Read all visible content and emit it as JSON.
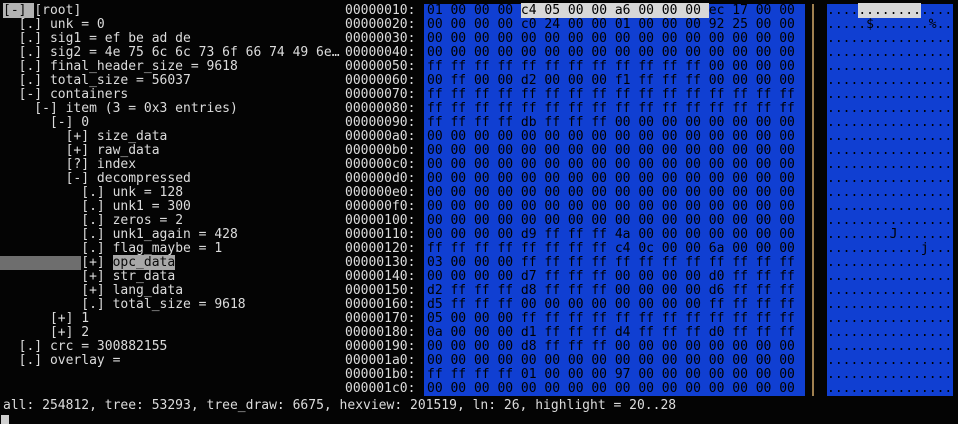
{
  "colors": {
    "panel_blue": "#103fd2",
    "byte_text": "#000000",
    "highlight_bg": "#d8d8d8",
    "selection_bar": "#6e6e6e",
    "selection_label_bg": "#a8a8a8",
    "cursor_bracket_bg": "#b2b2b2",
    "scrollbar": "#a08050",
    "text": "#dcdcdc"
  },
  "tree": {
    "rows": [
      {
        "indent": 0,
        "bracket": "[-]",
        "label": "[root]",
        "cursor_bracket": true,
        "selected": false
      },
      {
        "indent": 1,
        "bracket": "[.]",
        "label": "unk = 0",
        "selected": false
      },
      {
        "indent": 1,
        "bracket": "[.]",
        "label": "sig1 = ef be ad de",
        "selected": false
      },
      {
        "indent": 1,
        "bracket": "[.]",
        "label": "sig2 = 4e 75 6c 6c 73 6f 66 74 49 6e…",
        "selected": false
      },
      {
        "indent": 1,
        "bracket": "[.]",
        "label": "final_header_size = 9618",
        "selected": false
      },
      {
        "indent": 1,
        "bracket": "[.]",
        "label": "total_size = 56037",
        "selected": false
      },
      {
        "indent": 1,
        "bracket": "[-]",
        "label": "containers",
        "selected": false
      },
      {
        "indent": 2,
        "bracket": "[-]",
        "label": "item (3 = 0x3 entries)",
        "selected": false
      },
      {
        "indent": 3,
        "bracket": "[-]",
        "label": "0",
        "selected": false
      },
      {
        "indent": 4,
        "bracket": "[+]",
        "label": "size_data",
        "selected": false
      },
      {
        "indent": 4,
        "bracket": "[+]",
        "label": "raw_data",
        "selected": false
      },
      {
        "indent": 4,
        "bracket": "[?]",
        "label": "index",
        "selected": false
      },
      {
        "indent": 4,
        "bracket": "[-]",
        "label": "decompressed",
        "selected": false
      },
      {
        "indent": 5,
        "bracket": "[.]",
        "label": "unk = 128",
        "selected": false
      },
      {
        "indent": 5,
        "bracket": "[.]",
        "label": "unk1 = 300",
        "selected": false
      },
      {
        "indent": 5,
        "bracket": "[.]",
        "label": "zeros = 2",
        "selected": false
      },
      {
        "indent": 5,
        "bracket": "[.]",
        "label": "unk1_again = 428",
        "selected": false
      },
      {
        "indent": 5,
        "bracket": "[.]",
        "label": "flag_maybe = 1",
        "selected": false
      },
      {
        "indent": 5,
        "bracket": "[+]",
        "label": "opc_data",
        "selected": true
      },
      {
        "indent": 5,
        "bracket": "[+]",
        "label": "str_data",
        "selected": false
      },
      {
        "indent": 5,
        "bracket": "[+]",
        "label": "lang_data",
        "selected": false
      },
      {
        "indent": 5,
        "bracket": "[.]",
        "label": "total_size = 9618",
        "selected": false
      },
      {
        "indent": 3,
        "bracket": "[+]",
        "label": "1",
        "selected": false
      },
      {
        "indent": 3,
        "bracket": "[+]",
        "label": "2",
        "selected": false
      },
      {
        "indent": 1,
        "bracket": "[.]",
        "label": "crc = 300882155",
        "selected": false
      },
      {
        "indent": 1,
        "bracket": "[.]",
        "label": "overlay =",
        "selected": false
      }
    ]
  },
  "hex": {
    "rows": [
      {
        "addr": "00000010:",
        "bytes": "01 00 00 00 c4 05 00 00 a6 00 00 00 ec 17 00 00",
        "highlight": [
          4,
          12
        ]
      },
      {
        "addr": "00000020:",
        "bytes": "00 00 00 00 c0 24 00 00 01 00 00 00 92 25 00 00"
      },
      {
        "addr": "00000030:",
        "bytes": "00 00 00 00 00 00 00 00 00 00 00 00 00 00 00 00"
      },
      {
        "addr": "00000040:",
        "bytes": "00 00 00 00 00 00 00 00 00 00 00 00 00 00 00 00"
      },
      {
        "addr": "00000050:",
        "bytes": "ff ff ff ff ff ff ff ff ff ff ff ff 00 00 00 00"
      },
      {
        "addr": "00000060:",
        "bytes": "00 ff 00 00 d2 00 00 00 f1 ff ff ff 00 00 00 00"
      },
      {
        "addr": "00000070:",
        "bytes": "ff ff ff ff ff ff ff ff ff ff ff ff ff ff ff ff"
      },
      {
        "addr": "00000080:",
        "bytes": "ff ff ff ff ff ff ff ff ff ff ff ff ff ff ff ff"
      },
      {
        "addr": "00000090:",
        "bytes": "ff ff ff ff db ff ff ff 00 00 00 00 00 00 00 00"
      },
      {
        "addr": "000000a0:",
        "bytes": "00 00 00 00 00 00 00 00 00 00 00 00 00 00 00 00"
      },
      {
        "addr": "000000b0:",
        "bytes": "00 00 00 00 00 00 00 00 00 00 00 00 00 00 00 00"
      },
      {
        "addr": "000000c0:",
        "bytes": "00 00 00 00 00 00 00 00 00 00 00 00 00 00 00 00"
      },
      {
        "addr": "000000d0:",
        "bytes": "00 00 00 00 00 00 00 00 00 00 00 00 00 00 00 00"
      },
      {
        "addr": "000000e0:",
        "bytes": "00 00 00 00 00 00 00 00 00 00 00 00 00 00 00 00"
      },
      {
        "addr": "000000f0:",
        "bytes": "00 00 00 00 00 00 00 00 00 00 00 00 00 00 00 00"
      },
      {
        "addr": "00000100:",
        "bytes": "00 00 00 00 00 00 00 00 00 00 00 00 00 00 00 00"
      },
      {
        "addr": "00000110:",
        "bytes": "00 00 00 00 d9 ff ff ff 4a 00 00 00 00 00 00 00"
      },
      {
        "addr": "00000120:",
        "bytes": "ff ff ff ff ff ff ff ff c4 0c 00 00 6a 00 00 00"
      },
      {
        "addr": "00000130:",
        "bytes": "03 00 00 00 ff ff ff ff ff ff ff ff ff ff ff ff"
      },
      {
        "addr": "00000140:",
        "bytes": "00 00 00 00 d7 ff ff ff 00 00 00 00 d0 ff ff ff"
      },
      {
        "addr": "00000150:",
        "bytes": "d2 ff ff ff d8 ff ff ff 00 00 00 00 d6 ff ff ff"
      },
      {
        "addr": "00000160:",
        "bytes": "d5 ff ff ff 00 00 00 00 00 00 00 00 ff ff ff ff"
      },
      {
        "addr": "00000170:",
        "bytes": "05 00 00 00 ff ff ff ff ff ff ff ff ff ff ff ff"
      },
      {
        "addr": "00000180:",
        "bytes": "0a 00 00 00 d1 ff ff ff d4 ff ff ff d0 ff ff ff"
      },
      {
        "addr": "00000190:",
        "bytes": "00 00 00 00 d8 ff ff ff 00 00 00 00 00 00 00 00"
      },
      {
        "addr": "000001a0:",
        "bytes": "00 00 00 00 00 00 00 00 00 00 00 00 00 00 00 00"
      },
      {
        "addr": "000001b0:",
        "bytes": "ff ff ff ff 01 00 00 00 97 00 00 00 00 00 00 00"
      },
      {
        "addr": "000001c0:",
        "bytes": "00 00 00 00 00 00 00 00 00 00 00 00 00 00 00 00"
      }
    ]
  },
  "status": {
    "text": "all: 254812, tree: 53293, tree_draw: 6675, hexview: 201519, ln: 26, highlight = 20..28"
  }
}
